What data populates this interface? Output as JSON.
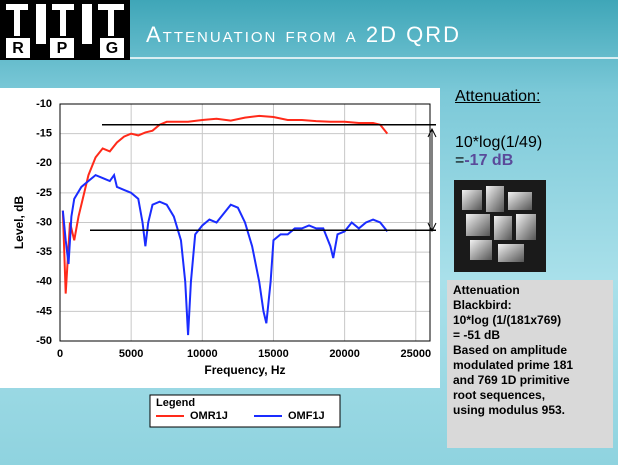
{
  "logo": {
    "letters": [
      "R",
      "P",
      "G"
    ]
  },
  "title": "Attenuation from a 2D QRD",
  "chart_data": {
    "type": "line",
    "xlabel": "Frequency, Hz",
    "ylabel": "Level, dB",
    "xlim": [
      0,
      26000
    ],
    "ylim": [
      -50,
      -10
    ],
    "xticks": [
      0,
      5000,
      10000,
      15000,
      20000,
      25000
    ],
    "yticks": [
      -10,
      -15,
      -20,
      -25,
      -30,
      -35,
      -40,
      -45,
      -50
    ],
    "grid": true,
    "legend_title": "Legend",
    "reference_lines": [
      -13.5,
      -31.3
    ],
    "series": [
      {
        "name": "OMR1J",
        "color": "#ff2a1a",
        "x": [
          200,
          300,
          400,
          700,
          1000,
          1300,
          1500,
          2000,
          2500,
          3000,
          3500,
          4000,
          4500,
          5000,
          5500,
          6000,
          6500,
          7000,
          7500,
          8000,
          9000,
          10000,
          11000,
          12000,
          13000,
          14000,
          15000,
          16000,
          17000,
          18000,
          19000,
          20000,
          21000,
          22000,
          22500,
          23000
        ],
        "values": [
          -28,
          -35,
          -42,
          -30,
          -33,
          -29,
          -27,
          -22,
          -19,
          -17.5,
          -18,
          -16.5,
          -15.5,
          -15,
          -15.3,
          -14.8,
          -14.5,
          -13.5,
          -13,
          -13,
          -13,
          -12.7,
          -12.5,
          -12.8,
          -12.3,
          -12,
          -12.2,
          -12.7,
          -12.7,
          -12.9,
          -13,
          -13,
          -13.2,
          -13.2,
          -13.5,
          -15
        ]
      },
      {
        "name": "OMF1J",
        "color": "#1a2cff",
        "x": [
          200,
          400,
          600,
          800,
          1000,
          1500,
          2000,
          2500,
          3000,
          3500,
          3800,
          4000,
          4500,
          5000,
          5500,
          5800,
          6000,
          6200,
          6500,
          7000,
          7500,
          8000,
          8500,
          8800,
          9000,
          9200,
          9500,
          10000,
          10500,
          11000,
          11500,
          12000,
          12500,
          13000,
          13500,
          14000,
          14300,
          14500,
          14800,
          15000,
          15500,
          16000,
          16500,
          17000,
          17500,
          18000,
          18500,
          19000,
          19200,
          19500,
          20000,
          20500,
          21000,
          21500,
          22000,
          22500,
          23000
        ],
        "values": [
          -28,
          -33,
          -37,
          -29,
          -26,
          -24,
          -23,
          -22,
          -22.5,
          -23,
          -22,
          -24,
          -24.5,
          -25,
          -26,
          -30,
          -34,
          -30,
          -27,
          -26.5,
          -27,
          -29,
          -33,
          -40,
          -49,
          -40,
          -32,
          -30.5,
          -29.5,
          -30,
          -28.5,
          -27,
          -27.5,
          -30,
          -34,
          -40,
          -45,
          -47,
          -40,
          -33,
          -32,
          -32,
          -31,
          -31,
          -30.5,
          -31,
          -31,
          -34,
          -36,
          -32,
          -31.5,
          -30,
          -31,
          -30,
          -29.5,
          -30,
          -31.5
        ]
      }
    ]
  },
  "side": {
    "heading": "Attenuation:",
    "formula": "10*log(1/49)",
    "result_prefix": "=",
    "result": "-17 dB"
  },
  "note": {
    "lines": [
      "Attenuation",
      "Blackbird:",
      "10*log (1/(181x769)",
      "= -51 dB",
      "Based on amplitude",
      "modulated prime 181",
      "and 769 1D primitive",
      "root sequences,",
      "using modulus 953."
    ]
  }
}
